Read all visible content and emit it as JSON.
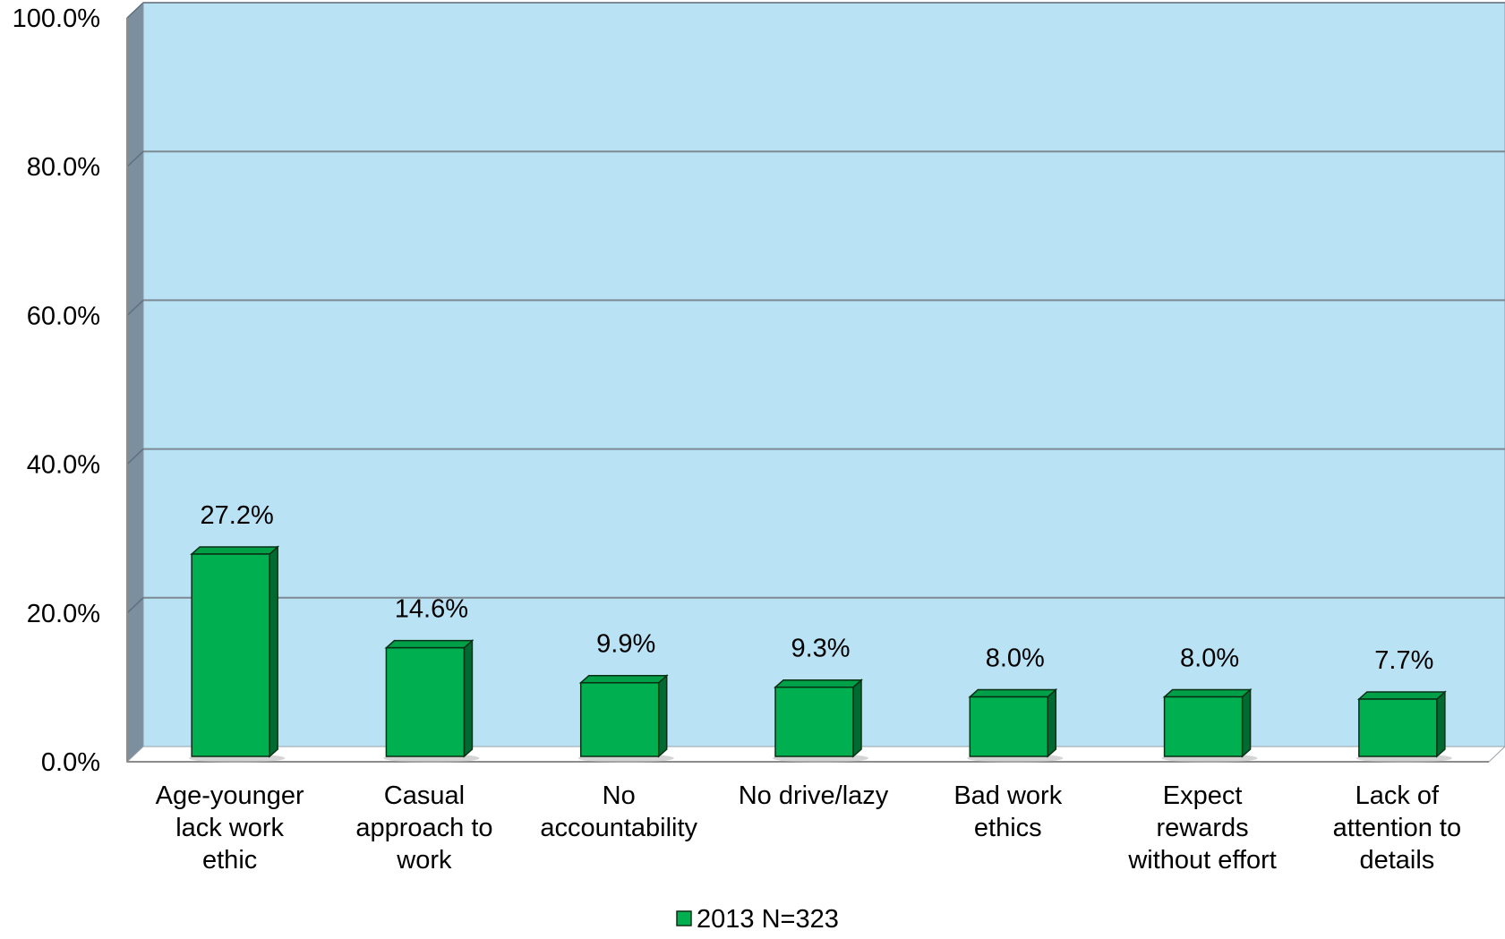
{
  "chart_data": {
    "type": "bar",
    "categories": [
      "Age-younger lack work ethic",
      "Casual approach to work",
      "No accountability",
      "No drive/lazy",
      "Bad work ethics",
      "Expect rewards without effort",
      "Lack of attention to details"
    ],
    "category_lines": [
      [
        "Age-younger",
        "lack work",
        "ethic"
      ],
      [
        "Casual",
        "approach to",
        "work"
      ],
      [
        "No",
        "accountability"
      ],
      [
        "No drive/lazy"
      ],
      [
        "Bad work",
        "ethics"
      ],
      [
        "Expect",
        "rewards",
        "without effort"
      ],
      [
        "Lack of",
        "attention to",
        "details"
      ]
    ],
    "series": [
      {
        "name": "2013 N=323",
        "values": [
          27.2,
          14.6,
          9.9,
          9.3,
          8.0,
          8.0,
          7.7
        ],
        "labels": [
          "27.2%",
          "14.6%",
          "9.9%",
          "9.3%",
          "8.0%",
          "8.0%",
          "7.7%"
        ]
      }
    ],
    "y_ticks": [
      0,
      20,
      40,
      60,
      80,
      100
    ],
    "y_tick_labels": [
      "0.0%",
      "20.0%",
      "40.0%",
      "60.0%",
      "80.0%",
      "100.0%"
    ],
    "ylim": [
      0,
      100
    ],
    "grid": true,
    "legend_position": "bottom",
    "colors": {
      "plot_background": "#b9e2f5",
      "side_wall": "#7b8f9e",
      "floor": "#ffffff",
      "bar_front": "#00b050",
      "bar_side": "#006b30",
      "bar_top": "#00a048",
      "bar_outline": "#0a2e14",
      "grid": "#7d8a93"
    }
  }
}
